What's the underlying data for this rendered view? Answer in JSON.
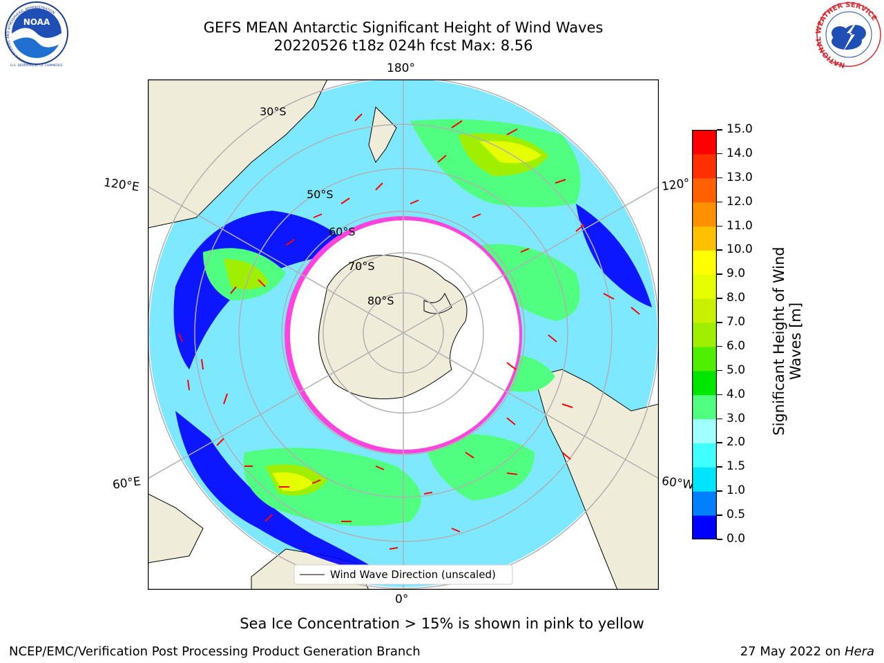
{
  "header": {
    "title_line1": "GEFS MEAN Antarctic Significant Height of Wind Waves",
    "title_line2": "20220526 t18z 024h fcst   Max: 8.56"
  },
  "logos": {
    "noara_text": "NOAA",
    "noaa_ring": "NATIONAL OCEANIC AND ATMOSPHERIC ADMINISTRATION",
    "noaa_bottom": "U.S. DEPARTMENT OF COMMERCE",
    "nws_ring": "NATIONAL WEATHER SERVICE"
  },
  "map": {
    "projection": "south-polar-stereographic",
    "center_longitude_top": "180°",
    "longitude_labels": {
      "top": "180°",
      "upper_left": "120°E",
      "upper_right": "120°",
      "lower_left": "60°E",
      "lower_right": "60°W",
      "bottom": "0°"
    },
    "latitude_labels": [
      "30°S",
      "50°S",
      "60°S",
      "70°S",
      "80°S"
    ],
    "legend_label": "Wind Wave Direction (unscaled)",
    "land_color": "#efedd9",
    "sea_ice_color": "#ff44dd",
    "arrow_color": "#ff0000"
  },
  "colorbar": {
    "title_line1": "Significant Height of Wind",
    "title_line2": "Waves [m]",
    "ticks": [
      "0.0",
      "0.5",
      "1.0",
      "1.5",
      "2.0",
      "3.0",
      "4.0",
      "5.0",
      "6.0",
      "7.0",
      "8.0",
      "9.0",
      "10.0",
      "11.0",
      "12.0",
      "13.0",
      "14.0",
      "15.0"
    ],
    "colors": [
      "#0000ff",
      "#0080ff",
      "#00e5ff",
      "#40ffff",
      "#a0ffff",
      "#50ff80",
      "#00e600",
      "#50ee00",
      "#a0ee00",
      "#c8f000",
      "#e6ff00",
      "#ffff00",
      "#ffc000",
      "#ff9000",
      "#ff6000",
      "#ff3000",
      "#ff0000"
    ]
  },
  "footer": {
    "note": "Sea Ice Concentration > 15% is shown in pink to yellow",
    "left": "NCEP/EMC/Verification Post Processing Product Generation Branch",
    "right_date": "27 May 2022 on ",
    "right_machine": "Hera"
  }
}
